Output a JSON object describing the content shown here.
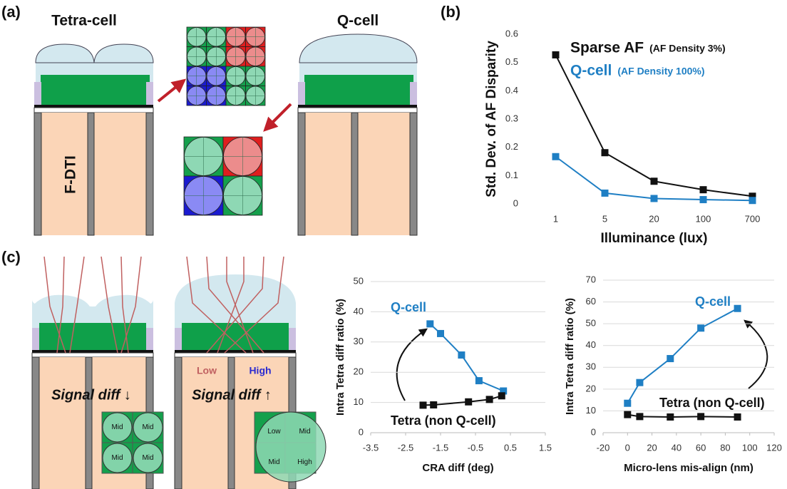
{
  "diagram": {
    "panel_a": "(a)",
    "panel_b": "(b)",
    "panel_c": "(c)",
    "tetra_cell": "Tetra-cell",
    "q_cell": "Q-cell",
    "fdti": "F-DTI",
    "low": "Low",
    "high": "High",
    "signal_diff_down": "Signal diff ↓",
    "signal_diff_up": "Signal diff ↑",
    "inset_left": [
      "Mid",
      "Mid",
      "Mid",
      "Mid"
    ],
    "inset_right": [
      "Low",
      "Mid",
      "Mid",
      "High"
    ]
  },
  "chart_data": [
    {
      "type": "line",
      "ylabel": "Std. Dev. of AF Disparity",
      "xlabel": "Illuminance (lux)",
      "categories": [
        "1",
        "5",
        "20",
        "100",
        "700"
      ],
      "ylim": [
        0,
        0.6
      ],
      "yticks": [
        0,
        0.1,
        0.2,
        0.3,
        0.4,
        0.5,
        0.6
      ],
      "grid": false,
      "series": [
        {
          "name": "Sparse AF",
          "note": "(AF Density 3%)",
          "color": "#111111",
          "values": [
            0.527,
            0.181,
            0.08,
            0.05,
            0.027
          ]
        },
        {
          "name": "Q-cell",
          "note": "(AF Density 100%)",
          "color": "#1f7fc4",
          "values": [
            0.167,
            0.038,
            0.019,
            0.015,
            0.012
          ]
        }
      ]
    },
    {
      "type": "line",
      "ylabel": "Intra Tetra diff ratio (%)",
      "xlabel": "CRA diff (deg)",
      "xlim": [
        -3.5,
        1.5
      ],
      "xticks": [
        -3.5,
        -2.5,
        -1.5,
        -0.5,
        0.5,
        1.5
      ],
      "ylim": [
        0,
        50
      ],
      "yticks": [
        0,
        10,
        20,
        30,
        40,
        50
      ],
      "grid": true,
      "series": [
        {
          "name": "Q-cell",
          "color": "#1f7fc4",
          "x": [
            -1.8,
            -1.5,
            -0.9,
            -0.4,
            0.3
          ],
          "values": [
            36,
            32.8,
            25.7,
            17.2,
            13.8
          ]
        },
        {
          "name": "Tetra (non Q-cell)",
          "color": "#111111",
          "x": [
            -2,
            -1.7,
            -0.7,
            -0.1,
            0.25
          ],
          "values": [
            9.1,
            9.2,
            10.2,
            11,
            12.2
          ]
        }
      ]
    },
    {
      "type": "line",
      "ylabel": "Intra Tetra diff ratio (%)",
      "xlabel": "Micro-lens mis-align (nm)",
      "xlim": [
        -20,
        120
      ],
      "xticks": [
        -20,
        0,
        20,
        40,
        60,
        80,
        100,
        120
      ],
      "ylim": [
        0,
        70
      ],
      "yticks": [
        0,
        10,
        20,
        30,
        40,
        50,
        60,
        70
      ],
      "grid": true,
      "series": [
        {
          "name": "Q-cell",
          "color": "#1f7fc4",
          "x": [
            0,
            10,
            35,
            60,
            90
          ],
          "values": [
            13.5,
            23,
            34,
            48,
            57
          ]
        },
        {
          "name": "Tetra (non Q-cell)",
          "color": "#111111",
          "x": [
            0,
            10,
            35,
            60,
            90
          ],
          "values": [
            8.3,
            7.4,
            7.2,
            7.4,
            7.2
          ]
        }
      ]
    }
  ]
}
